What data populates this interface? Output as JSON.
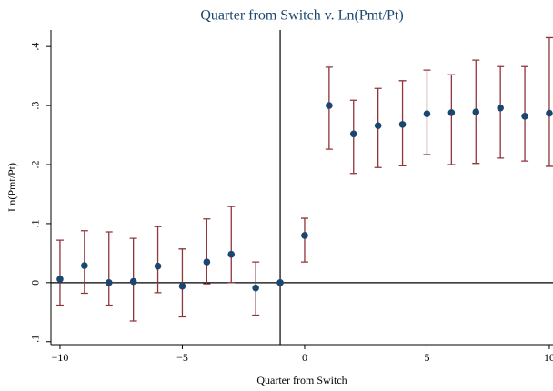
{
  "chart_data": {
    "type": "errorbar",
    "title": "Quarter from Switch v. Ln(Pmt/Pt)",
    "x_label": "Quarter from Switch",
    "y_label": "Ln(Pmt/Pt)",
    "x": [
      -10,
      -9,
      -8,
      -7,
      -6,
      -5,
      -4,
      -3,
      -2,
      -1,
      0,
      1,
      2,
      3,
      4,
      5,
      6,
      7,
      8,
      9,
      10
    ],
    "series": [
      {
        "color": "#1a476f",
        "error_color": "#90353b",
        "values": [
          0.006,
          0.029,
          0,
          0.002,
          0.028,
          -0.006,
          0.035,
          0.048,
          -0.009,
          0,
          0.08,
          0.3,
          0.252,
          0.266,
          0.268,
          0.286,
          0.288,
          0.289,
          0.296,
          0.282,
          0.287
        ],
        "lower": [
          -0.038,
          -0.018,
          -0.038,
          -0.065,
          -0.017,
          -0.058,
          -0.002,
          0,
          -0.055,
          null,
          0.035,
          0.226,
          0.185,
          0.195,
          0.198,
          0.217,
          0.2,
          0.202,
          0.211,
          0.206,
          0.197
        ],
        "upper": [
          0.072,
          0.088,
          0.086,
          0.075,
          0.095,
          0.057,
          0.108,
          0.129,
          0.035,
          null,
          0.109,
          0.365,
          0.309,
          0.329,
          0.342,
          0.36,
          0.352,
          0.377,
          0.366,
          0.366,
          0.415
        ]
      }
    ],
    "xlim": [
      -10.37,
      10.15
    ],
    "ylim": [
      -0.105,
      0.428
    ],
    "xticks": [
      {
        "value": -10,
        "label": "−10"
      },
      {
        "value": -5,
        "label": "−5"
      },
      0,
      5,
      10
    ],
    "yticks": [
      {
        "value": -0.1,
        "label": "−.1"
      },
      0,
      {
        "value": 0.1,
        "label": ".1"
      },
      {
        "value": 0.2,
        "label": ".2"
      },
      {
        "value": 0.3,
        "label": ".3"
      },
      {
        "value": 0.4,
        "label": ".4"
      }
    ],
    "reference_lines": {
      "x": -1,
      "y": 0
    },
    "grid": false
  }
}
